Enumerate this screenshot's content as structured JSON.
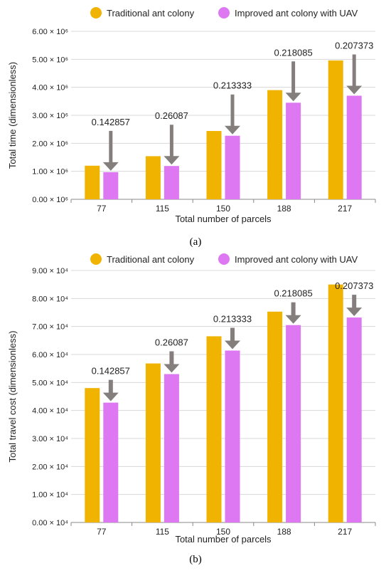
{
  "figure": {
    "panels": [
      {
        "label": "(a)"
      },
      {
        "label": "(b)"
      }
    ]
  },
  "colors": {
    "traditional": "#F0B400",
    "improved": "#DD77F2",
    "arrow": "#847F7C",
    "grid": "#d8d8d8",
    "axis": "#888888",
    "text": "#222222"
  },
  "chart_data": [
    {
      "type": "bar",
      "categories": [
        "77",
        "115",
        "150",
        "188",
        "217"
      ],
      "series": [
        {
          "name": "Traditional ant colony",
          "values": [
            1200000,
            1540000,
            2440000,
            3900000,
            4960000
          ]
        },
        {
          "name": "Improved ant colony with UAV",
          "values": [
            970000,
            1190000,
            2270000,
            3450000,
            3700000
          ]
        }
      ],
      "annotations": [
        "0.142857",
        "0.26087",
        "0.213333",
        "0.218085",
        "0.207373"
      ],
      "xlabel": "Total number of parcels",
      "ylabel": "Total time (dimensionless)",
      "ylim": [
        0,
        6000000
      ],
      "yticks": [
        0,
        1000000,
        2000000,
        3000000,
        4000000,
        5000000,
        6000000
      ],
      "ytick_labels": [
        "0.00 × 10⁶",
        "1.00 × 10⁶",
        "2.00 × 10⁶",
        "3.00 × 10⁶",
        "4.00 × 10⁶",
        "5.00 × 10⁶",
        "6.00 × 10⁶"
      ],
      "legend": "top",
      "grid": true
    },
    {
      "type": "bar",
      "categories": [
        "77",
        "115",
        "150",
        "188",
        "217"
      ],
      "series": [
        {
          "name": "Traditional ant colony",
          "values": [
            48000,
            56800,
            66500,
            75300,
            85000
          ]
        },
        {
          "name": "Improved ant colony with UAV",
          "values": [
            42800,
            53000,
            61400,
            70500,
            73200
          ]
        }
      ],
      "annotations": [
        "0.142857",
        "0.26087",
        "0.213333",
        "0.218085",
        "0.207373"
      ],
      "xlabel": "Total number of parcels",
      "ylabel": "Total travel cost (dimensionless)",
      "ylim": [
        0,
        90000
      ],
      "yticks": [
        0,
        10000,
        20000,
        30000,
        40000,
        50000,
        60000,
        70000,
        80000,
        90000
      ],
      "ytick_labels": [
        "0.00 × 10⁴",
        "1.00 × 10⁴",
        "2.00 × 10⁴",
        "3.00 × 10⁴",
        "4.00 × 10⁴",
        "5.00 × 10⁴",
        "6.00 × 10⁴",
        "7.00 × 10⁴",
        "8.00 × 10⁴",
        "9.00 × 10⁴"
      ],
      "legend": "top",
      "grid": true
    }
  ]
}
